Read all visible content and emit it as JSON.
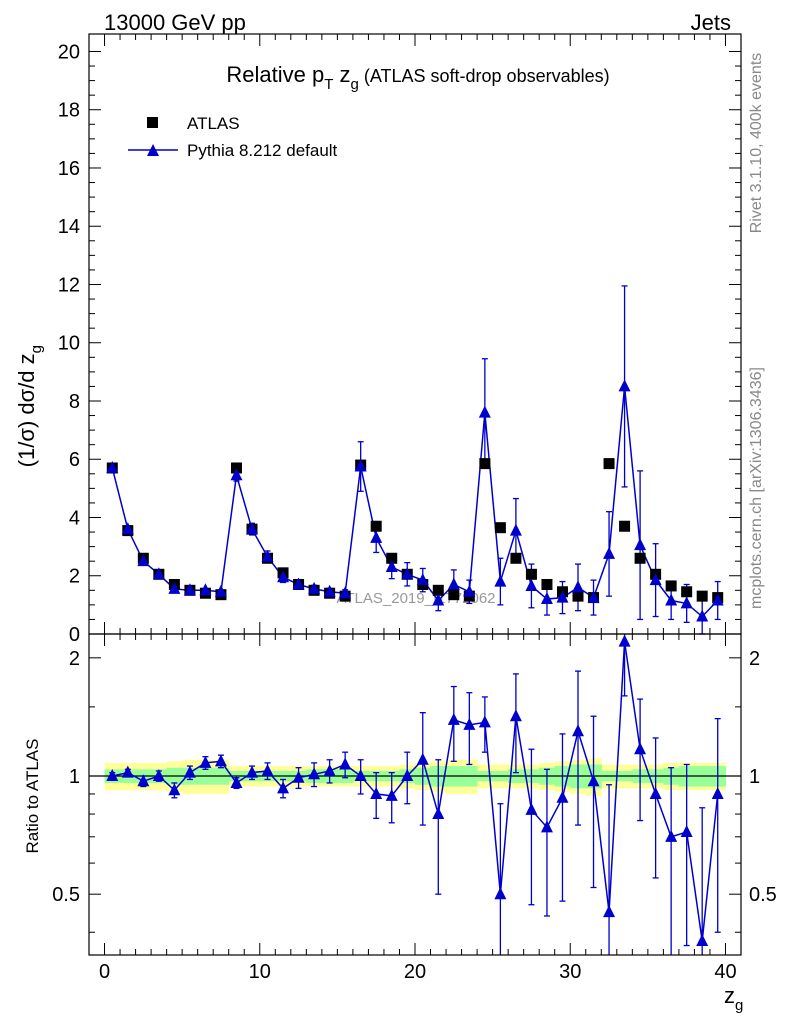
{
  "header": {
    "energy_label": "13000 GeV pp",
    "category_label": "Jets"
  },
  "side_labels": {
    "rivet": "Rivet 3.1.10,  400k events",
    "mcplots": "mcplots.cern.ch [arXiv:1306.3436]"
  },
  "colors": {
    "mc": "#0000cc",
    "data": "#000000",
    "band_outer": "#ffff99",
    "band_inner": "#99ff99"
  },
  "chart_data": [
    {
      "type": "scatter",
      "title_main": "Relative p",
      "title_sub_t": "T",
      "title_z": " z",
      "title_sub_g": "g",
      "title_tail": " (ATLAS soft-drop observables)",
      "ylabel_main": "(1/σ) dσ/d z",
      "ylabel_sub": "g",
      "xlim": [
        -1,
        41
      ],
      "ylim": [
        0,
        20.6
      ],
      "yticks": [
        0,
        2,
        4,
        6,
        8,
        10,
        12,
        14,
        16,
        18,
        20
      ],
      "watermark": "ATLAS_2019_I1772062",
      "legend": [
        {
          "name": "ATLAS",
          "marker": "square"
        },
        {
          "name": "Pythia 8.212 default",
          "marker": "triangle"
        }
      ],
      "x": [
        0.5,
        1.5,
        2.5,
        3.5,
        4.5,
        5.5,
        6.5,
        7.5,
        8.5,
        9.5,
        10.5,
        11.5,
        12.5,
        13.5,
        14.5,
        15.5,
        16.5,
        17.5,
        18.5,
        19.5,
        20.5,
        21.5,
        22.5,
        23.5,
        24.5,
        25.5,
        26.5,
        27.5,
        28.5,
        29.5,
        30.5,
        31.5,
        32.5,
        33.5,
        34.5,
        35.5,
        36.5,
        37.5,
        38.5,
        39.5
      ],
      "series": [
        {
          "name": "ATLAS",
          "values": [
            5.7,
            3.55,
            2.6,
            2.05,
            1.7,
            1.5,
            1.4,
            1.35,
            5.7,
            3.6,
            2.6,
            2.1,
            1.7,
            1.5,
            1.4,
            1.3,
            5.8,
            3.7,
            2.6,
            2.05,
            1.7,
            1.5,
            1.35,
            1.3,
            5.85,
            3.65,
            2.6,
            2.05,
            1.7,
            1.45,
            1.3,
            1.25,
            5.85,
            3.7,
            2.6,
            2.05,
            1.65,
            1.45,
            1.3,
            1.25
          ]
        },
        {
          "name": "Pythia 8.212 default",
          "values": [
            5.7,
            3.6,
            2.5,
            2.05,
            1.55,
            1.5,
            1.5,
            1.45,
            5.45,
            3.6,
            2.65,
            1.95,
            1.7,
            1.55,
            1.45,
            1.4,
            5.75,
            3.3,
            2.3,
            2.05,
            1.85,
            1.15,
            1.7,
            1.45,
            7.6,
            1.8,
            3.55,
            1.65,
            1.2,
            1.25,
            1.6,
            1.25,
            2.75,
            8.5,
            3.05,
            1.85,
            1.15,
            1.05,
            0.6,
            1.15
          ],
          "errors": [
            0.1,
            0.08,
            0.08,
            0.07,
            0.06,
            0.06,
            0.06,
            0.06,
            0.2,
            0.2,
            0.2,
            0.18,
            0.15,
            0.12,
            0.12,
            0.12,
            0.85,
            0.5,
            0.4,
            0.4,
            0.4,
            0.35,
            0.5,
            0.4,
            1.85,
            0.8,
            1.1,
            0.75,
            0.55,
            0.55,
            0.8,
            0.6,
            1.45,
            3.45,
            2.55,
            1.25,
            0.65,
            0.65,
            0.75,
            0.65
          ]
        }
      ]
    },
    {
      "type": "scatter",
      "ylabel": "Ratio to ATLAS",
      "xlabel_main": "z",
      "xlabel_sub": "g",
      "xlim": [
        -1,
        41
      ],
      "ylim": [
        0.35,
        2.3
      ],
      "yticks": [
        0.5,
        1,
        2
      ],
      "ytick_labels": [
        "0.5",
        "1",
        "2"
      ],
      "xticks": [
        0,
        10,
        20,
        30,
        40
      ],
      "xtick_labels": [
        "0",
        "10",
        "20",
        "30",
        "40"
      ],
      "reference": 1,
      "band_inner": [
        0.04,
        0.04,
        0.04,
        0.04,
        0.05,
        0.05,
        0.05,
        0.05,
        0.03,
        0.03,
        0.03,
        0.03,
        0.03,
        0.04,
        0.04,
        0.04,
        0.03,
        0.03,
        0.03,
        0.04,
        0.05,
        0.06,
        0.06,
        0.06,
        0.03,
        0.03,
        0.04,
        0.04,
        0.05,
        0.06,
        0.07,
        0.07,
        0.03,
        0.03,
        0.04,
        0.04,
        0.05,
        0.06,
        0.06,
        0.06
      ],
      "band_outer": [
        0.08,
        0.08,
        0.08,
        0.08,
        0.09,
        0.1,
        0.1,
        0.1,
        0.06,
        0.06,
        0.06,
        0.06,
        0.06,
        0.06,
        0.06,
        0.06,
        0.06,
        0.06,
        0.06,
        0.07,
        0.08,
        0.09,
        0.1,
        0.1,
        0.07,
        0.07,
        0.07,
        0.07,
        0.08,
        0.09,
        0.1,
        0.11,
        0.07,
        0.07,
        0.07,
        0.07,
        0.08,
        0.08,
        0.08,
        0.08
      ],
      "series": [
        {
          "name": "Pythia 8.212 default",
          "values": [
            1.0,
            1.02,
            0.97,
            1.0,
            0.92,
            1.02,
            1.08,
            1.09,
            0.96,
            1.02,
            1.03,
            0.93,
            0.99,
            1.01,
            1.03,
            1.07,
            1.0,
            0.9,
            0.89,
            1.0,
            1.1,
            0.8,
            1.39,
            1.35,
            1.37,
            0.5,
            1.42,
            0.82,
            0.74,
            0.88,
            1.3,
            0.97,
            0.45,
            2.2,
            1.17,
            0.9,
            0.7,
            0.72,
            0.38,
            0.9
          ],
          "errors": [
            0.02,
            0.02,
            0.03,
            0.03,
            0.04,
            0.04,
            0.04,
            0.04,
            0.03,
            0.04,
            0.05,
            0.05,
            0.06,
            0.07,
            0.07,
            0.08,
            0.1,
            0.12,
            0.13,
            0.15,
            0.35,
            0.3,
            0.3,
            0.28,
            0.22,
            0.35,
            0.4,
            0.35,
            0.3,
            0.4,
            0.55,
            0.45,
            0.5,
            0.6,
            0.4,
            0.35,
            0.35,
            0.35,
            0.45,
            0.5
          ]
        }
      ]
    }
  ]
}
